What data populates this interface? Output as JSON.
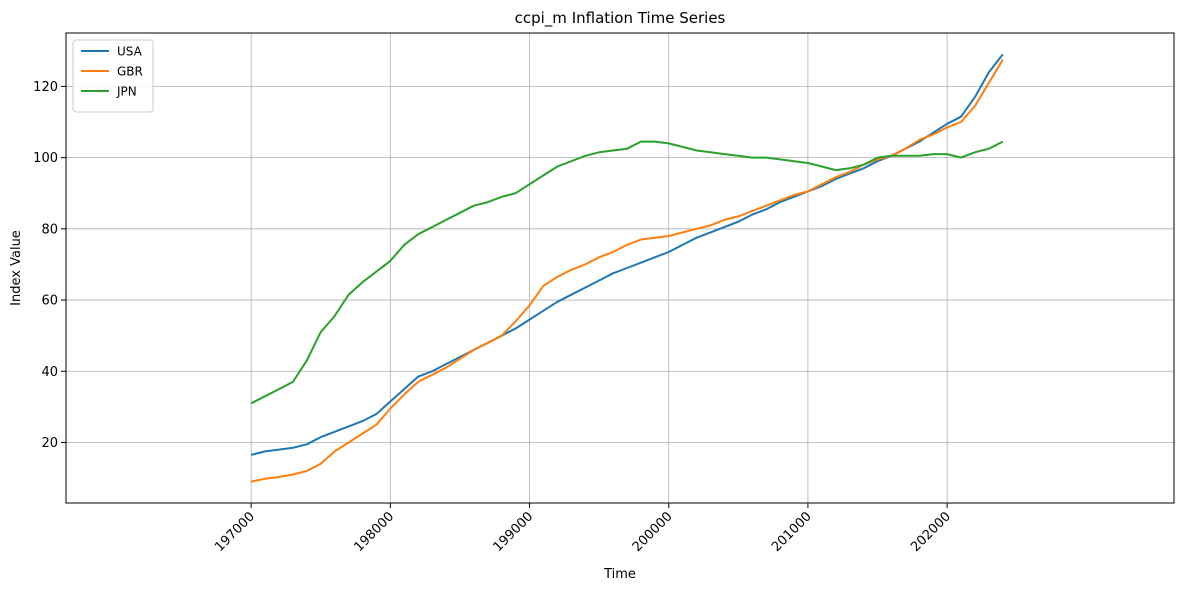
{
  "chart_data": {
    "type": "line",
    "title": "ccpi_m Inflation Time Series",
    "xlabel": "Time",
    "ylabel": "Index Value",
    "xlim": [
      195670,
      203630
    ],
    "ylim": [
      3,
      135
    ],
    "x_ticks": [
      197000,
      198000,
      199000,
      200000,
      201000,
      202000
    ],
    "x_tick_labels": [
      "197000",
      "198000",
      "199000",
      "200000",
      "201000",
      "202000"
    ],
    "y_ticks": [
      20,
      40,
      60,
      80,
      100,
      120
    ],
    "y_tick_labels": [
      "20",
      "40",
      "60",
      "80",
      "100",
      "120"
    ],
    "grid": true,
    "legend": "top-left",
    "x": [
      197000,
      197100,
      197200,
      197300,
      197400,
      197500,
      197600,
      197700,
      197800,
      197900,
      198000,
      198100,
      198200,
      198300,
      198400,
      198500,
      198600,
      198700,
      198800,
      198900,
      199000,
      199100,
      199200,
      199300,
      199400,
      199500,
      199600,
      199700,
      199800,
      199900,
      200000,
      200100,
      200200,
      200300,
      200400,
      200500,
      200600,
      200700,
      200800,
      200900,
      201000,
      201100,
      201200,
      201300,
      201400,
      201500,
      201600,
      201700,
      201800,
      201900,
      202000,
      202100,
      202200,
      202300,
      202400
    ],
    "series": [
      {
        "name": "USA",
        "color": "#1f77b4",
        "values": [
          16.5,
          17.5,
          18.0,
          18.5,
          19.5,
          21.5,
          23.0,
          24.5,
          26.0,
          28.0,
          31.5,
          35.0,
          38.5,
          40.0,
          42.0,
          44.0,
          46.0,
          48.0,
          50.0,
          52.0,
          54.5,
          57.0,
          59.5,
          61.5,
          63.5,
          65.5,
          67.5,
          69.0,
          70.5,
          72.0,
          73.5,
          75.5,
          77.5,
          79.0,
          80.5,
          82.0,
          84.0,
          85.5,
          87.5,
          89.0,
          90.5,
          92.0,
          94.0,
          95.5,
          97.0,
          99.0,
          100.5,
          102.5,
          104.5,
          107.0,
          109.5,
          111.5,
          117.0,
          124.0,
          129.0
        ]
      },
      {
        "name": "GBR",
        "color": "#ff7f0e",
        "values": [
          9.0,
          9.8,
          10.3,
          11.0,
          12.0,
          14.0,
          17.5,
          20.0,
          22.5,
          25.0,
          29.5,
          33.5,
          37.0,
          39.0,
          41.0,
          43.5,
          46.0,
          48.0,
          50.0,
          54.0,
          58.5,
          64.0,
          66.5,
          68.5,
          70.0,
          72.0,
          73.5,
          75.5,
          77.0,
          77.5,
          78.0,
          79.0,
          80.0,
          81.0,
          82.5,
          83.5,
          85.0,
          86.5,
          88.0,
          89.5,
          90.5,
          92.5,
          94.5,
          96.0,
          98.0,
          99.5,
          100.5,
          102.5,
          105.0,
          106.5,
          108.5,
          110.0,
          114.5,
          121.0,
          127.5
        ]
      },
      {
        "name": "JPN",
        "color": "#2ca02c",
        "values": [
          31.0,
          33.0,
          35.0,
          37.0,
          43.0,
          51.0,
          55.5,
          61.5,
          65.0,
          68.0,
          71.0,
          75.5,
          78.5,
          80.5,
          82.5,
          84.5,
          86.5,
          87.5,
          89.0,
          90.0,
          92.5,
          95.0,
          97.5,
          99.0,
          100.5,
          101.5,
          102.0,
          102.5,
          104.5,
          104.5,
          104.0,
          103.0,
          102.0,
          101.5,
          101.0,
          100.5,
          100.0,
          100.0,
          99.5,
          99.0,
          98.5,
          97.5,
          96.5,
          97.0,
          98.0,
          100.0,
          100.5,
          100.5,
          100.5,
          101.0,
          101.0,
          100.0,
          101.5,
          102.5,
          104.5
        ]
      }
    ]
  }
}
